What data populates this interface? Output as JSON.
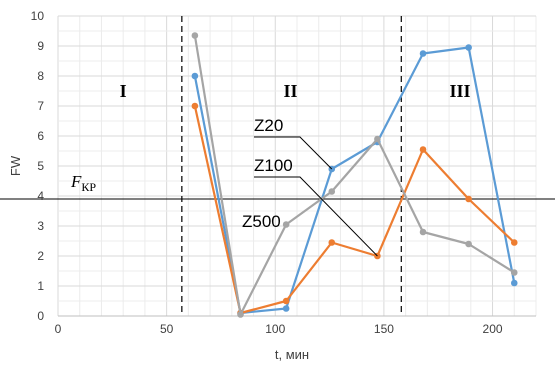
{
  "chart_data": {
    "type": "line",
    "title": "",
    "xlabel": "t, мин",
    "ylabel": "FW",
    "xlim": [
      0,
      220
    ],
    "ylim": [
      0,
      10
    ],
    "xticks": [
      "0",
      "50",
      "100",
      "150",
      "200"
    ],
    "yticks": [
      "0",
      "1",
      "2",
      "3",
      "4",
      "5",
      "6",
      "7",
      "8",
      "9",
      "10"
    ],
    "grid": true,
    "series": [
      {
        "name": "Z20",
        "color": "#5B9BD5",
        "x": [
          63,
          84,
          105,
          126,
          147,
          168,
          189,
          210
        ],
        "y": [
          8.0,
          0.1,
          0.25,
          4.9,
          5.8,
          8.75,
          8.95,
          1.1
        ]
      },
      {
        "name": "Z100",
        "color": "#ED7D31",
        "x": [
          63,
          84,
          105,
          126,
          147,
          168,
          189,
          210
        ],
        "y": [
          7.0,
          0.1,
          0.5,
          2.45,
          2.0,
          5.55,
          3.9,
          2.45
        ]
      },
      {
        "name": "Z500",
        "color": "#A5A5A5",
        "x": [
          63,
          84,
          105,
          126,
          147,
          168,
          189,
          210
        ],
        "y": [
          9.35,
          0.05,
          3.05,
          4.15,
          5.9,
          2.8,
          2.4,
          1.45
        ]
      }
    ],
    "threshold": {
      "label_main": "F",
      "label_sub": "КР",
      "value": 3.9
    },
    "boundaries": [
      57,
      158
    ],
    "regions": [
      {
        "label": "I",
        "x": 30,
        "y": 7.5
      },
      {
        "label": "II",
        "x": 107,
        "y": 7.5
      },
      {
        "label": "III",
        "x": 185,
        "y": 7.5
      }
    ]
  }
}
